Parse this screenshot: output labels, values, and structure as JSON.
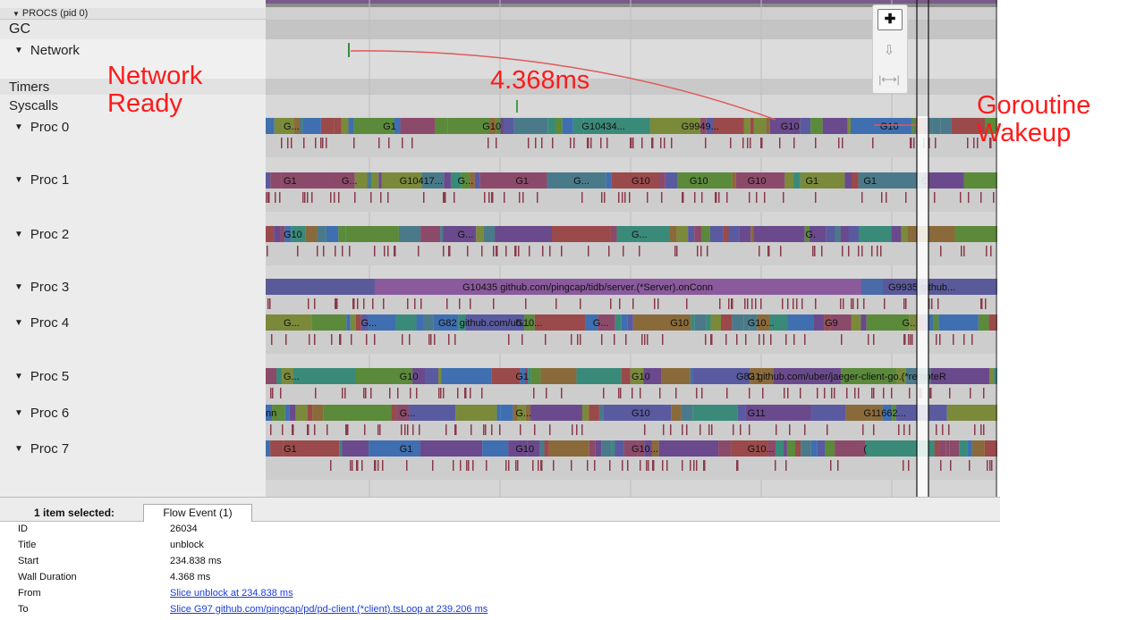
{
  "window": {
    "procs_header": "PROCS (pid 0)",
    "triangle": "▼"
  },
  "rows": [
    {
      "id": "gc",
      "label": "GC",
      "expandable": false
    },
    {
      "id": "network",
      "label": "Network",
      "expandable": true
    },
    {
      "id": "timers",
      "label": "Timers",
      "expandable": false
    },
    {
      "id": "syscalls",
      "label": "Syscalls",
      "expandable": false
    },
    {
      "id": "proc0",
      "label": "Proc 0",
      "expandable": true,
      "slices": [
        "G...",
        "G1",
        "G10",
        "G10434...",
        "G9949...",
        "G10",
        "G10"
      ]
    },
    {
      "id": "proc1",
      "label": "Proc 1",
      "expandable": true,
      "slices": [
        "G1",
        "G...",
        "G10417...",
        "G...",
        "G1",
        "G...",
        "G10",
        "G10",
        "G10",
        "G1",
        "G1",
        "G"
      ]
    },
    {
      "id": "proc2",
      "label": "Proc 2",
      "expandable": true,
      "slices": [
        "G10",
        "G...",
        "G...",
        "G."
      ]
    },
    {
      "id": "proc3",
      "label": "Proc 3",
      "expandable": true,
      "slices": [
        "G10435 github.com/pingcap/tidb/server.(*Server).onConn",
        "G9935 github..."
      ]
    },
    {
      "id": "proc4",
      "label": "Proc 4",
      "expandable": true,
      "slices": [
        "G...",
        "G...",
        "G82 github.com/ub...",
        "G10...",
        "G...",
        "G10",
        "G10...",
        "G9",
        "G..."
      ]
    },
    {
      "id": "proc5",
      "label": "Proc 5",
      "expandable": true,
      "slices": [
        "G...",
        "G10",
        "G1",
        "G10",
        "G1",
        "G82 github.com/uber/jaeger-client-go.(*remoteR"
      ]
    },
    {
      "id": "proc6",
      "label": "Proc 6",
      "expandable": true,
      "slices": [
        "nn",
        "G...",
        "G...",
        "G10",
        "G11",
        "G11662..."
      ]
    },
    {
      "id": "proc7",
      "label": "Proc 7",
      "expandable": true,
      "slices": [
        "G1",
        "G1",
        "G10",
        "G10...",
        "G10...",
        "("
      ]
    }
  ],
  "annotations": {
    "network_ready": [
      "Network",
      "Ready"
    ],
    "duration": "4.368ms",
    "goroutine_wakeup": [
      "Goroutine",
      "Wakeup"
    ]
  },
  "zoom_controls": {
    "select": {
      "glyph": "✚",
      "icon": "select-mode-icon"
    },
    "pan": {
      "glyph": "⇩",
      "icon": "pan-mode-icon"
    },
    "zoom": {
      "glyph": "|⟷|",
      "icon": "zoom-mode-icon"
    }
  },
  "panel": {
    "selection_count": "1 item selected:",
    "tab_label": "Flow Event (1)",
    "fields": [
      {
        "key": "ID",
        "value": "26034",
        "link": false
      },
      {
        "key": "Title",
        "value": "unblock",
        "link": false
      },
      {
        "key": "Start",
        "value": "234.838 ms",
        "link": false
      },
      {
        "key": "Wall Duration",
        "value": "4.368 ms",
        "link": false
      },
      {
        "key": "From",
        "value": "Slice unblock at 234.838 ms",
        "link": true
      },
      {
        "key": "To",
        "value": "Slice G97 github.com/pingcap/pd/pd-client.(*client).tsLoop at 239.206 ms",
        "link": true
      }
    ]
  },
  "colors": {
    "annotation": "#ff1a1a",
    "flow_arrow": "#e05a5a",
    "link": "#1a3cd8",
    "slice_palette": [
      "#6a4a8c",
      "#3f6fb0",
      "#5a8a3a",
      "#8c4a6a",
      "#4a7a8a",
      "#7a8a3a",
      "#5a5aa0",
      "#8a6a3a",
      "#3a8a7a",
      "#9a4a4a"
    ]
  }
}
